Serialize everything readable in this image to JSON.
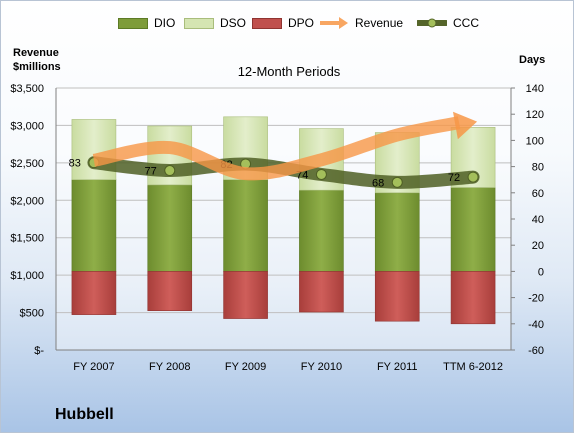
{
  "chart_data": {
    "type": "bar",
    "title": "12-Month Periods",
    "company": "Hubbell",
    "y_left_title": [
      "Revenue",
      "$millions"
    ],
    "y_right_title": "Days",
    "categories": [
      "FY 2007",
      "FY 2008",
      "FY 2009",
      "FY 2010",
      "FY 2011",
      "TTM 6-2012"
    ],
    "y_left_ticks": [
      "$-",
      "$500",
      "$1,000",
      "$1,500",
      "$2,000",
      "$2,500",
      "$3,000",
      "$3,500"
    ],
    "y_right_ticks": [
      "-60",
      "-40",
      "-20",
      "0",
      "20",
      "40",
      "60",
      "80",
      "100",
      "120",
      "140"
    ],
    "ylim_left": [
      0,
      3500
    ],
    "ylim_right": [
      -60,
      140
    ],
    "series": [
      {
        "name": "DIO",
        "axis": "right",
        "color": "#7e9c3a",
        "values": [
          70,
          66,
          70,
          62,
          60,
          64
        ]
      },
      {
        "name": "DSO",
        "axis": "right",
        "color": "#d5e5b2",
        "values": [
          46,
          45,
          48,
          47,
          46,
          46
        ]
      },
      {
        "name": "DPO",
        "axis": "right",
        "color": "#c0504d",
        "values": [
          -33,
          -30,
          -36,
          -31,
          -38,
          -40
        ]
      },
      {
        "name": "Revenue",
        "axis": "left",
        "color": "#f79646",
        "values": [
          2533,
          2704,
          2356,
          2541,
          2872,
          3050
        ]
      },
      {
        "name": "CCC",
        "axis": "right",
        "color": "#6b7d3a",
        "values": [
          83,
          77,
          82,
          74,
          68,
          72
        ]
      }
    ],
    "ccc_labels": [
      "83",
      "77",
      "82",
      "74",
      "68",
      "72"
    ],
    "grid": true,
    "legend_position": "top"
  }
}
